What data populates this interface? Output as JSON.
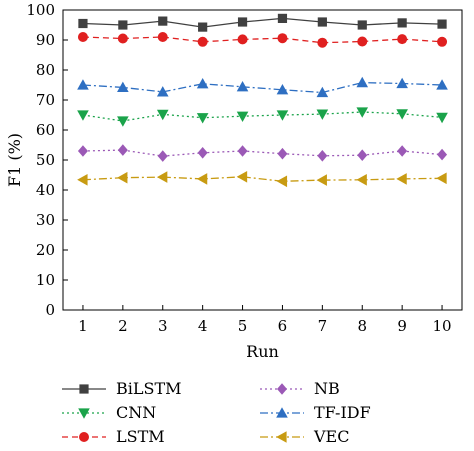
{
  "chart_data": {
    "type": "line",
    "xlabel": "Run",
    "ylabel": "F1 (%)",
    "x": [
      1,
      2,
      3,
      4,
      5,
      6,
      7,
      8,
      9,
      10
    ],
    "xlim": [
      0.5,
      10.5
    ],
    "ylim": [
      0,
      100
    ],
    "yticks": [
      0,
      10,
      20,
      30,
      40,
      50,
      60,
      70,
      80,
      90,
      100
    ],
    "grid": false,
    "legend_placement": "bottom",
    "series": [
      {
        "name": "BiLSTM",
        "color": "#404040",
        "marker": "square",
        "dash": "solid",
        "values": [
          95.5,
          95.0,
          96.3,
          94.3,
          96.0,
          97.2,
          96.0,
          95.0,
          95.7,
          95.3
        ]
      },
      {
        "name": "CNN",
        "color": "#1aa34a",
        "marker": "triangle-down",
        "dash": "dotted",
        "values": [
          65.0,
          63.0,
          65.2,
          64.1,
          64.6,
          65.0,
          65.3,
          66.0,
          65.4,
          64.2
        ]
      },
      {
        "name": "LSTM",
        "color": "#e02020",
        "marker": "circle",
        "dash": "dashed",
        "values": [
          91.0,
          90.5,
          91.0,
          89.4,
          90.2,
          90.6,
          89.1,
          89.5,
          90.3,
          89.4
        ]
      },
      {
        "name": "NB",
        "color": "#9b59b6",
        "marker": "diamond",
        "dash": "dotted",
        "values": [
          53.0,
          53.3,
          51.3,
          52.4,
          53.0,
          52.1,
          51.4,
          51.6,
          53.0,
          51.8
        ]
      },
      {
        "name": "TF-IDF",
        "color": "#2e6fc2",
        "marker": "triangle-up",
        "dash": "dashdot",
        "values": [
          75.0,
          74.2,
          72.7,
          75.4,
          74.4,
          73.4,
          72.5,
          75.8,
          75.5,
          75.0
        ]
      },
      {
        "name": "VEC",
        "color": "#c89b12",
        "marker": "triangle-left",
        "dash": "dashdot",
        "values": [
          43.4,
          44.1,
          44.3,
          43.7,
          44.4,
          42.9,
          43.3,
          43.4,
          43.7,
          43.9
        ]
      }
    ]
  }
}
